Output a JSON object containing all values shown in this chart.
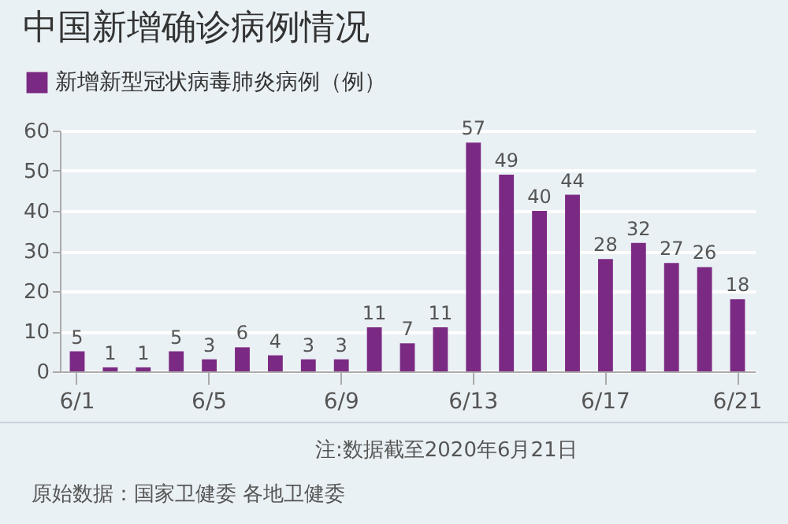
{
  "chart_data": {
    "type": "bar",
    "title": "中国新增确诊病例情况",
    "categories": [
      "6/1",
      null,
      null,
      null,
      "6/5",
      null,
      null,
      null,
      "6/9",
      null,
      null,
      null,
      "6/13",
      null,
      null,
      null,
      "6/17",
      null,
      null,
      null,
      "6/21"
    ],
    "series": [
      {
        "name": "新增新型冠状病毒肺炎病例（例）",
        "color": "#7b2a83",
        "values": [
          5,
          1,
          1,
          5,
          3,
          6,
          4,
          3,
          3,
          11,
          7,
          11,
          57,
          49,
          40,
          44,
          28,
          32,
          27,
          26,
          18
        ]
      }
    ],
    "ylim": [
      0,
      60
    ],
    "yticks": [
      0,
      10,
      20,
      30,
      40,
      50,
      60
    ],
    "grid": "y",
    "legend": "top left",
    "data_labels": true,
    "annotations": [
      "注:数据截至2020年6月21日",
      "原始数据：国家卫健委 各地卫健委"
    ]
  }
}
